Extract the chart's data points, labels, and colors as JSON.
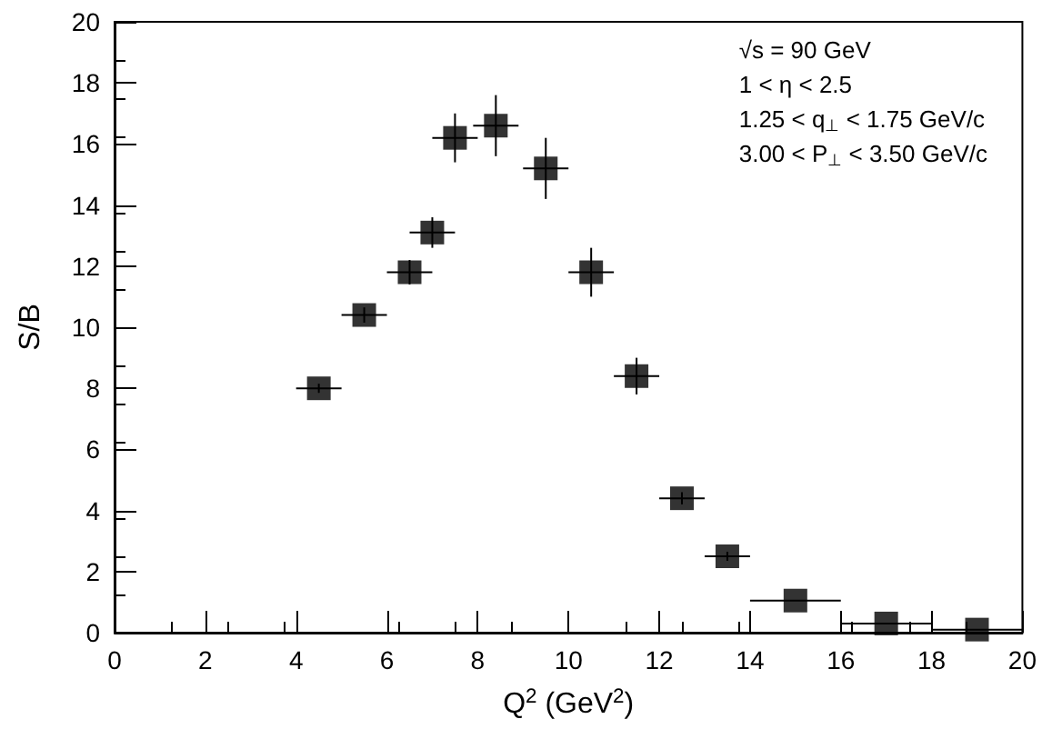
{
  "chart_data": {
    "type": "scatter",
    "xlabel": "Q$^{2}$ (GeV$^{2}$)",
    "ylabel": "S/B",
    "x": [
      4.5,
      5.5,
      6.5,
      7.0,
      7.5,
      8.4,
      9.5,
      10.5,
      11.5,
      12.5,
      13.5,
      15,
      17,
      19
    ],
    "values": [
      8.0,
      10.4,
      11.8,
      13.1,
      16.2,
      16.6,
      15.2,
      11.8,
      8.4,
      4.4,
      2.5,
      1.05,
      0.3,
      0.1
    ],
    "errors": [
      0.15,
      0.25,
      0.4,
      0.5,
      0.8,
      1.0,
      1.0,
      0.8,
      0.6,
      0.2,
      0.15,
      null,
      null,
      null
    ],
    "xerrors": [
      0.5,
      0.5,
      0.5,
      0.5,
      0.5,
      0.5,
      0.5,
      0.5,
      0.5,
      0.5,
      0.5,
      1,
      1,
      1
    ],
    "color": "#000000",
    "marker": "square",
    "xlim": [
      0,
      20
    ],
    "xticks": [
      0,
      2,
      4,
      6,
      8,
      10,
      12,
      14,
      16,
      18,
      20
    ],
    "ylim": [
      0,
      20
    ],
    "yticks": [
      0,
      2,
      4,
      6,
      8,
      10,
      12,
      14,
      16,
      18,
      20
    ],
    "grid": false,
    "annotations": [
      "√s = 90 GeV",
      "1 < η < 2.5",
      "1.25 < q$_{⊥}$ < 1.75 GeV/c",
      "3.00 < P$_{⊥}$ < 3.50 GeV/c"
    ]
  }
}
